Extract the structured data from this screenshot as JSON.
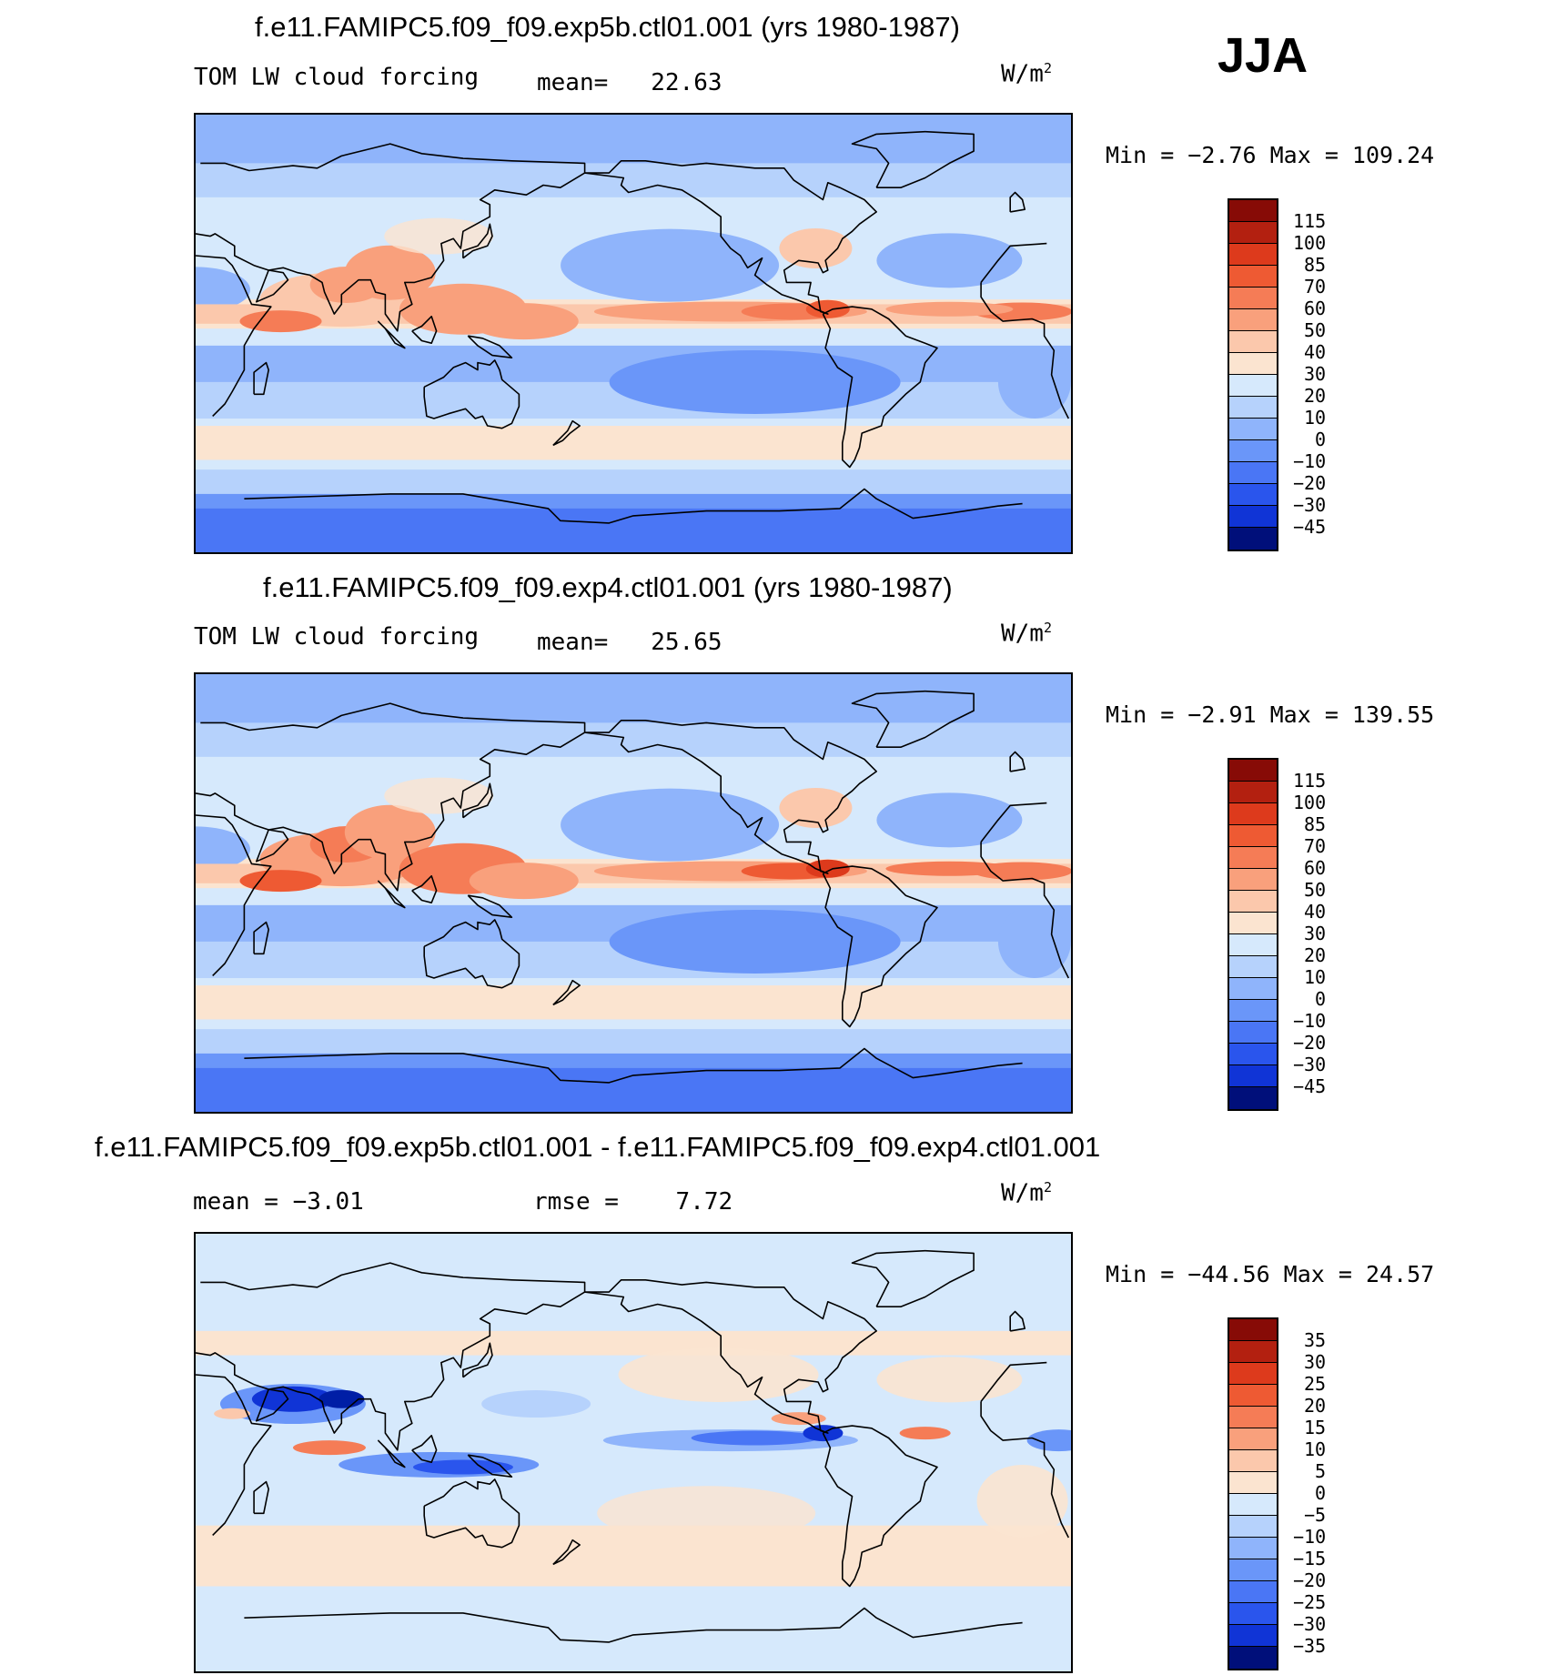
{
  "season": "JJA",
  "units_base": "W/m",
  "units_exp": "2",
  "colors": {
    "warm": [
      "#fbe4d0",
      "#fbc8ac",
      "#f9a07c",
      "#f57c56",
      "#ee5a33",
      "#dd3a1c",
      "#b32010",
      "#870b06"
    ],
    "cool": [
      "#d6e9fc",
      "#b6d2fc",
      "#8fb4fb",
      "#6a96f9",
      "#4a76f5",
      "#2a55ed",
      "#1034d6",
      "#001ea6",
      "#000f7a"
    ],
    "coast": "#000000"
  },
  "panels": [
    {
      "id": "exp5b",
      "title": "f.e11.FAMIPC5.f09_f09.exp5b.ctl01.001 (yrs 1980-1987)",
      "left_label": "TOM LW cloud forcing",
      "mid_label": "mean=",
      "mid_value": "22.63",
      "minmax_label": "Min =  −2.76 Max = 109.24"
    },
    {
      "id": "exp4",
      "title": "f.e11.FAMIPC5.f09_f09.exp4.ctl01.001 (yrs 1980-1987)",
      "left_label": "TOM LW cloud forcing",
      "mid_label": "mean=",
      "mid_value": "25.65",
      "minmax_label": "Min =  −2.91 Max = 139.55"
    },
    {
      "id": "diff",
      "title": "f.e11.FAMIPC5.f09_f09.exp5b.ctl01.001 - f.e11.FAMIPC5.f09_f09.exp4.ctl01.001",
      "left_label": "mean =  −3.01",
      "mid_label": "rmse =",
      "mid_value": "7.72",
      "minmax_label": "Min = −44.56 Max =  24.57"
    }
  ],
  "chart_data": [
    {
      "type": "heatmap",
      "title": "f.e11.FAMIPC5.f09_f09.exp5b.ctl01.001 (yrs 1980-1987)",
      "variable": "TOM LW cloud forcing",
      "units": "W/m2",
      "mean": 22.63,
      "min": -2.76,
      "max": 109.24,
      "colorbar_levels": [
        "115",
        "100",
        "85",
        "70",
        "60",
        "50",
        "40",
        "30",
        "20",
        "10",
        "0",
        "−10",
        "−20",
        "−30",
        "−45"
      ],
      "colorbar_colors": [
        "#870b06",
        "#b32010",
        "#dd3a1c",
        "#ee5a33",
        "#f57c56",
        "#f9a07c",
        "#fbc8ac",
        "#fbe4d0",
        "#d6e9fc",
        "#b6d2fc",
        "#8fb4fb",
        "#6a96f9",
        "#4a76f5",
        "#2a55ed",
        "#1034d6",
        "#000f7a"
      ]
    },
    {
      "type": "heatmap",
      "title": "f.e11.FAMIPC5.f09_f09.exp4.ctl01.001 (yrs 1980-1987)",
      "variable": "TOM LW cloud forcing",
      "units": "W/m2",
      "mean": 25.65,
      "min": -2.91,
      "max": 139.55,
      "colorbar_levels": [
        "115",
        "100",
        "85",
        "70",
        "60",
        "50",
        "40",
        "30",
        "20",
        "10",
        "0",
        "−10",
        "−20",
        "−30",
        "−45"
      ],
      "colorbar_colors": [
        "#870b06",
        "#b32010",
        "#dd3a1c",
        "#ee5a33",
        "#f57c56",
        "#f9a07c",
        "#fbc8ac",
        "#fbe4d0",
        "#d6e9fc",
        "#b6d2fc",
        "#8fb4fb",
        "#6a96f9",
        "#4a76f5",
        "#2a55ed",
        "#1034d6",
        "#000f7a"
      ]
    },
    {
      "type": "heatmap",
      "title": "f.e11.FAMIPC5.f09_f09.exp5b.ctl01.001 - f.e11.FAMIPC5.f09_f09.exp4.ctl01.001",
      "units": "W/m2",
      "mean": -3.01,
      "rmse": 7.72,
      "min": -44.56,
      "max": 24.57,
      "colorbar_levels": [
        "35",
        "30",
        "25",
        "20",
        "15",
        "10",
        "5",
        "0",
        "−5",
        "−10",
        "−15",
        "−20",
        "−25",
        "−30",
        "−35"
      ],
      "colorbar_colors": [
        "#870b06",
        "#b32010",
        "#dd3a1c",
        "#ee5a33",
        "#f57c56",
        "#f9a07c",
        "#fbc8ac",
        "#fbe4d0",
        "#d6e9fc",
        "#b6d2fc",
        "#8fb4fb",
        "#6a96f9",
        "#4a76f5",
        "#2a55ed",
        "#1034d6",
        "#000f7a"
      ]
    }
  ]
}
